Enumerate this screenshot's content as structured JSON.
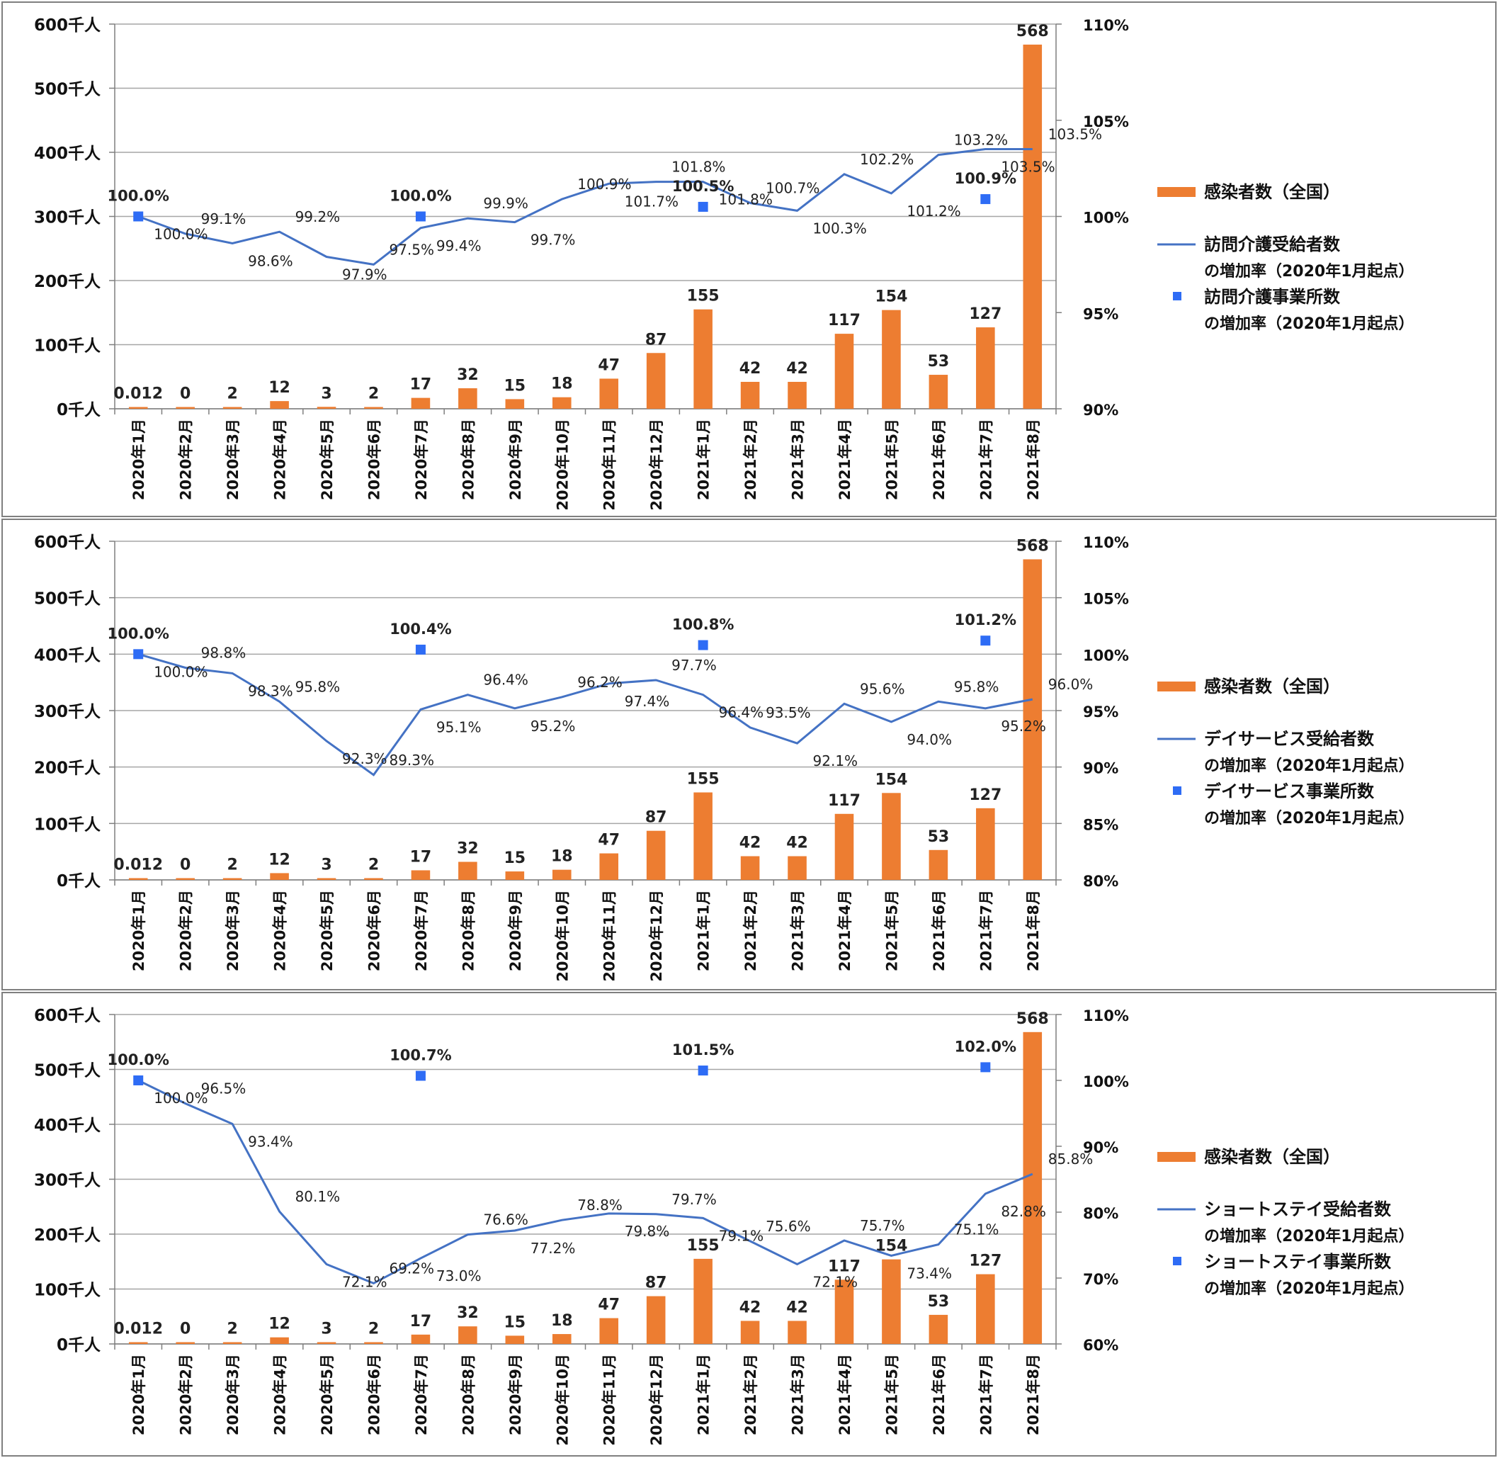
{
  "chart_data": [
    {
      "type": "bar+line",
      "categories": [
        "2020年1月",
        "2020年2月",
        "2020年3月",
        "2020年4月",
        "2020年5月",
        "2020年6月",
        "2020年7月",
        "2020年8月",
        "2020年9月",
        "2020年10月",
        "2020年11月",
        "2020年12月",
        "2021年1月",
        "2021年2月",
        "2021年3月",
        "2021年4月",
        "2021年5月",
        "2021年6月",
        "2021年7月",
        "2021年8月"
      ],
      "y_left_ticks": [
        "0千人",
        "100千人",
        "200千人",
        "300千人",
        "400千人",
        "500千人",
        "600千人"
      ],
      "y_left_range": [
        0,
        600
      ],
      "y_right_ticks": [
        "90%",
        "95%",
        "100%",
        "105%",
        "110%"
      ],
      "y_right_range": [
        90,
        110
      ],
      "bars": {
        "name": "感染者数（全国）",
        "color": "#ED7D31",
        "values": [
          0.012,
          0,
          2,
          12,
          3,
          2,
          17,
          32,
          15,
          18,
          47,
          87,
          155,
          42,
          42,
          117,
          154,
          53,
          127,
          568
        ],
        "labels": [
          "0.012",
          "0",
          "2",
          "12",
          "3",
          "2",
          "17",
          "32",
          "15",
          "18",
          "47",
          "87",
          "155",
          "42",
          "42",
          "117",
          "154",
          "53",
          "127",
          "568"
        ]
      },
      "line": {
        "name": [
          "訪問介護受給者数",
          "の増加率（2020年1月起点）"
        ],
        "color": "#4472C4",
        "values": [
          100.0,
          99.1,
          98.6,
          99.2,
          97.9,
          97.5,
          99.4,
          99.9,
          99.7,
          100.9,
          101.7,
          101.8,
          101.8,
          100.7,
          100.3,
          102.2,
          101.2,
          103.2,
          103.5,
          103.5
        ],
        "labels": [
          "100.0%",
          "99.1%",
          "98.6%",
          "99.2%",
          "97.9%",
          "97.5%",
          "99.4%",
          "99.9%",
          "99.7%",
          "100.9%",
          "101.7%",
          "101.8%",
          "101.8%",
          "100.7%",
          "100.3%",
          "102.2%",
          "101.2%",
          "103.2%",
          "103.5%",
          "103.5%"
        ]
      },
      "markers": {
        "name": [
          "訪問介護事業所数",
          "の増加率（2020年1月起点）"
        ],
        "color": "#2E6CF5",
        "points": [
          {
            "index": 0,
            "value": 100.0,
            "label": "100.0%"
          },
          {
            "index": 6,
            "value": 100.0,
            "label": "100.0%"
          },
          {
            "index": 12,
            "value": 100.5,
            "label": "100.5%"
          },
          {
            "index": 18,
            "value": 100.9,
            "label": "100.9%"
          }
        ]
      }
    },
    {
      "type": "bar+line",
      "categories": [
        "2020年1月",
        "2020年2月",
        "2020年3月",
        "2020年4月",
        "2020年5月",
        "2020年6月",
        "2020年7月",
        "2020年8月",
        "2020年9月",
        "2020年10月",
        "2020年11月",
        "2020年12月",
        "2021年1月",
        "2021年2月",
        "2021年3月",
        "2021年4月",
        "2021年5月",
        "2021年6月",
        "2021年7月",
        "2021年8月"
      ],
      "y_left_ticks": [
        "0千人",
        "100千人",
        "200千人",
        "300千人",
        "400千人",
        "500千人",
        "600千人"
      ],
      "y_left_range": [
        0,
        600
      ],
      "y_right_ticks": [
        "80%",
        "85%",
        "90%",
        "95%",
        "100%",
        "105%",
        "110%"
      ],
      "y_right_range": [
        80,
        110
      ],
      "bars": {
        "name": "感染者数（全国）",
        "color": "#ED7D31",
        "values": [
          0.012,
          0,
          2,
          12,
          3,
          2,
          17,
          32,
          15,
          18,
          47,
          87,
          155,
          42,
          42,
          117,
          154,
          53,
          127,
          568
        ],
        "labels": [
          "0.012",
          "0",
          "2",
          "12",
          "3",
          "2",
          "17",
          "32",
          "15",
          "18",
          "47",
          "87",
          "155",
          "42",
          "42",
          "117",
          "154",
          "53",
          "127",
          "568"
        ]
      },
      "line": {
        "name": [
          "デイサービス受給者数",
          "の増加率（2020年1月起点）"
        ],
        "color": "#4472C4",
        "values": [
          100.0,
          98.8,
          98.3,
          95.8,
          92.3,
          89.3,
          95.1,
          96.4,
          95.2,
          96.2,
          97.4,
          97.7,
          96.4,
          93.5,
          92.1,
          95.6,
          94.0,
          95.8,
          95.2,
          96.0
        ],
        "labels": [
          "100.0%",
          "98.8%",
          "98.3%",
          "95.8%",
          "92.3%",
          "89.3%",
          "95.1%",
          "96.4%",
          "95.2%",
          "96.2%",
          "97.4%",
          "97.7%",
          "96.4%",
          "93.5%",
          "92.1%",
          "95.6%",
          "94.0%",
          "95.8%",
          "95.2%",
          "96.0%"
        ]
      },
      "markers": {
        "name": [
          "デイサービス事業所数",
          "の増加率（2020年1月起点）"
        ],
        "color": "#2E6CF5",
        "points": [
          {
            "index": 0,
            "value": 100.0,
            "label": "100.0%"
          },
          {
            "index": 6,
            "value": 100.4,
            "label": "100.4%"
          },
          {
            "index": 12,
            "value": 100.8,
            "label": "100.8%"
          },
          {
            "index": 18,
            "value": 101.2,
            "label": "101.2%"
          }
        ]
      }
    },
    {
      "type": "bar+line",
      "categories": [
        "2020年1月",
        "2020年2月",
        "2020年3月",
        "2020年4月",
        "2020年5月",
        "2020年6月",
        "2020年7月",
        "2020年8月",
        "2020年9月",
        "2020年10月",
        "2020年11月",
        "2020年12月",
        "2021年1月",
        "2021年2月",
        "2021年3月",
        "2021年4月",
        "2021年5月",
        "2021年6月",
        "2021年7月",
        "2021年8月"
      ],
      "y_left_ticks": [
        "0千人",
        "100千人",
        "200千人",
        "300千人",
        "400千人",
        "500千人",
        "600千人"
      ],
      "y_left_range": [
        0,
        600
      ],
      "y_right_ticks": [
        "60%",
        "70%",
        "80%",
        "90%",
        "100%",
        "110%"
      ],
      "y_right_range": [
        60,
        110
      ],
      "bars": {
        "name": "感染者数（全国）",
        "color": "#ED7D31",
        "values": [
          0.012,
          0,
          2,
          12,
          3,
          2,
          17,
          32,
          15,
          18,
          47,
          87,
          155,
          42,
          42,
          117,
          154,
          53,
          127,
          568
        ],
        "labels": [
          "0.012",
          "0",
          "2",
          "12",
          "3",
          "2",
          "17",
          "32",
          "15",
          "18",
          "47",
          "87",
          "155",
          "42",
          "42",
          "117",
          "154",
          "53",
          "127",
          "568"
        ]
      },
      "line": {
        "name": [
          "ショートステイ受給者数",
          "の増加率（2020年1月起点）"
        ],
        "color": "#4472C4",
        "values": [
          100.0,
          96.5,
          93.4,
          80.1,
          72.1,
          69.2,
          73.0,
          76.6,
          77.2,
          78.8,
          79.8,
          79.7,
          79.1,
          75.6,
          72.1,
          75.7,
          73.4,
          75.1,
          82.8,
          85.8
        ],
        "labels": [
          "100.0%",
          "96.5%",
          "93.4%",
          "80.1%",
          "72.1%",
          "69.2%",
          "73.0%",
          "76.6%",
          "77.2%",
          "78.8%",
          "79.8%",
          "79.7%",
          "79.1%",
          "75.6%",
          "72.1%",
          "75.7%",
          "73.4%",
          "75.1%",
          "82.8%",
          "85.8%"
        ]
      },
      "markers": {
        "name": [
          "ショートステイ事業所数",
          "の増加率（2020年1月起点）"
        ],
        "color": "#2E6CF5",
        "points": [
          {
            "index": 0,
            "value": 100.0,
            "label": "100.0%"
          },
          {
            "index": 6,
            "value": 100.7,
            "label": "100.7%"
          },
          {
            "index": 12,
            "value": 101.5,
            "label": "101.5%"
          },
          {
            "index": 18,
            "value": 102.0,
            "label": "102.0%"
          }
        ]
      }
    }
  ]
}
